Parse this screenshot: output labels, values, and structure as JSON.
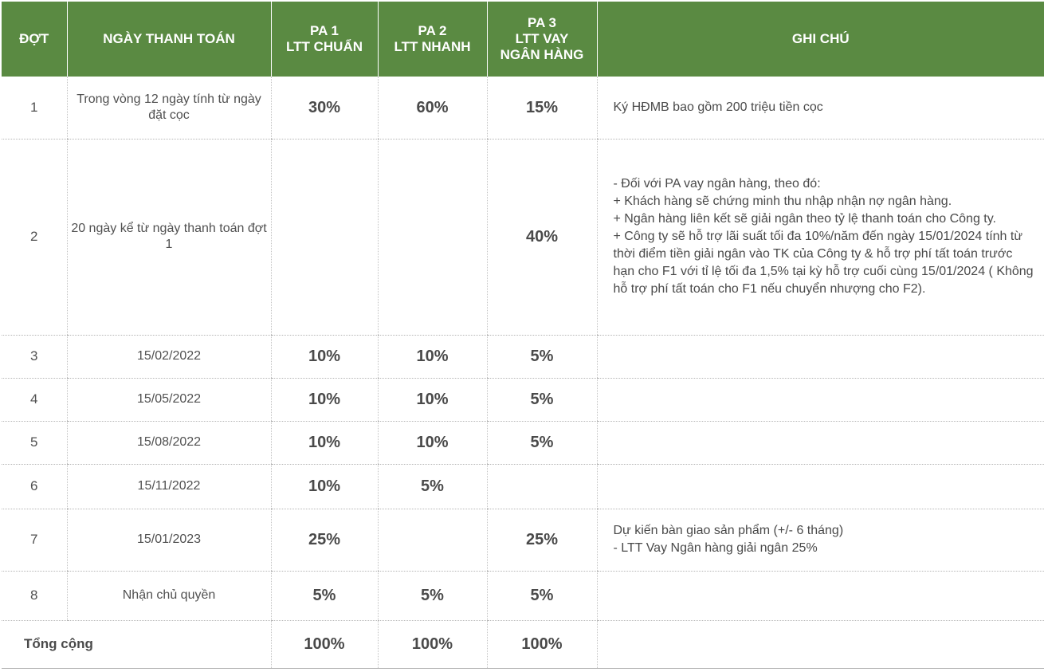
{
  "header": {
    "col_dot": "ĐỢT",
    "col_date": "NGÀY THANH TOÁN",
    "col_pa1": [
      "PA 1",
      "LTT CHUẨN"
    ],
    "col_pa2": [
      "PA 2",
      "LTT NHANH"
    ],
    "col_pa3": [
      "PA 3",
      "LTT VAY",
      "NGÂN HÀNG"
    ],
    "col_note": "GHI CHÚ"
  },
  "rows": [
    {
      "dot": "1",
      "date": "Trong vòng 12 ngày tính từ ngày đặt cọc",
      "pa1": "30%",
      "pa2": "60%",
      "pa3": "15%",
      "note": "Ký HĐMB bao gồm 200 triệu tiền cọc"
    },
    {
      "dot": "2",
      "date": "20 ngày kể từ ngày thanh toán đợt 1",
      "pa1": "",
      "pa2": "",
      "pa3": "40%",
      "note": "- Đối với PA vay ngân hàng, theo đó:\n  + Khách hàng sẽ chứng minh thu nhập nhận nợ ngân hàng.\n  + Ngân hàng liên kết sẽ giải ngân theo tỷ lệ thanh toán cho Công ty.\n  + Công ty sẽ hỗ trợ lãi suất tối đa 10%/năm đến ngày 15/01/2024 tính từ thời điểm tiền giải ngân vào TK của Công ty & hỗ trợ phí tất toán trước hạn cho F1 với tỉ lệ tối đa 1,5% tại kỳ hỗ trợ cuối cùng 15/01/2024 ( Không hỗ trợ phí tất toán cho F1 nếu chuyển nhượng cho F2)."
    },
    {
      "dot": "3",
      "date": "15/02/2022",
      "pa1": "10%",
      "pa2": "10%",
      "pa3": "5%",
      "note": ""
    },
    {
      "dot": "4",
      "date": "15/05/2022",
      "pa1": "10%",
      "pa2": "10%",
      "pa3": "5%",
      "note": ""
    },
    {
      "dot": "5",
      "date": "15/08/2022",
      "pa1": "10%",
      "pa2": "10%",
      "pa3": "5%",
      "note": ""
    },
    {
      "dot": "6",
      "date": "15/11/2022",
      "pa1": "10%",
      "pa2": "5%",
      "pa3": "",
      "note": ""
    },
    {
      "dot": "7",
      "date": "15/01/2023",
      "pa1": "25%",
      "pa2": "",
      "pa3": "25%",
      "note": "Dự kiến bàn giao sản phẩm  (+/- 6 tháng)\n - LTT Vay Ngân hàng giải ngân 25%"
    },
    {
      "dot": "8",
      "date": "Nhận chủ quyền",
      "pa1": "5%",
      "pa2": "5%",
      "pa3": "5%",
      "note": ""
    }
  ],
  "total": {
    "label": "Tổng cộng",
    "pa1": "100%",
    "pa2": "100%",
    "pa3": "100%"
  },
  "colors": {
    "header_bg": "#5a8a42",
    "header_text": "#ffffff",
    "body_text": "#4a4a4a"
  }
}
